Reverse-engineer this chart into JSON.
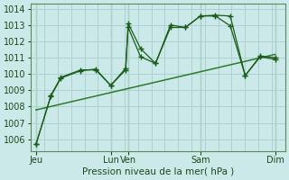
{
  "xlabel": "Pression niveau de la mer( hPa )",
  "ylim": [
    1005.3,
    1014.3
  ],
  "yticks": [
    1006,
    1007,
    1008,
    1009,
    1010,
    1011,
    1012,
    1013,
    1014
  ],
  "background_color": "#cce9e9",
  "grid_color": "#aed0d0",
  "line_color": "#1a5c1a",
  "line_color2": "#2d7a2d",
  "xtick_labels": [
    "Jeu",
    "Lun",
    "Ven",
    "Sam",
    "Dim"
  ],
  "xtick_positions": [
    0,
    30,
    37,
    66,
    96
  ],
  "xlim": [
    -2,
    100
  ],
  "series1_x": [
    0,
    6,
    10,
    18,
    24,
    30,
    36,
    37,
    42,
    48,
    54,
    60,
    66,
    72,
    78,
    84,
    90,
    96
  ],
  "series1_y": [
    1005.7,
    1008.7,
    1009.8,
    1010.25,
    1010.25,
    1009.3,
    1010.25,
    1013.1,
    1011.55,
    1010.65,
    1013.0,
    1012.85,
    1013.55,
    1013.55,
    1012.95,
    1009.9,
    1011.05,
    1010.9
  ],
  "series2_x": [
    0,
    6,
    10,
    18,
    24,
    30,
    36,
    37,
    42,
    48,
    54,
    60,
    66,
    72,
    78,
    84,
    90,
    96
  ],
  "series2_y": [
    1005.7,
    1008.65,
    1009.75,
    1010.2,
    1010.3,
    1009.3,
    1010.35,
    1012.85,
    1011.05,
    1010.65,
    1012.85,
    1012.85,
    1013.55,
    1013.6,
    1013.55,
    1009.9,
    1011.1,
    1011.0
  ],
  "trend_x": [
    0,
    96
  ],
  "trend_y": [
    1007.8,
    1011.2
  ]
}
